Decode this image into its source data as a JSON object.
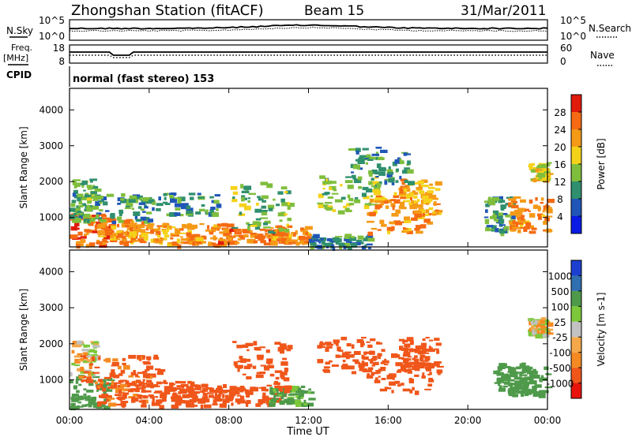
{
  "header": {
    "station": "Zhongshan Station (fitACF)",
    "beam": "Beam 15",
    "date": "31/Mar/2011"
  },
  "summary": {
    "nsky_label": "N.Sky",
    "nsky_ticks": [
      "10^5",
      "10^0"
    ],
    "nsearch_label": "N.Search",
    "nsearch_ticks": [
      "10^5",
      "10^0"
    ],
    "freq_label": "Freq.",
    "freq_unit": "[MHz]",
    "freq_ticks": [
      "18",
      "8"
    ],
    "nave_label": "Nave",
    "nave_ticks": [
      "60",
      "0"
    ],
    "cpid_label": "CPID",
    "cpid_text": "normal (fast stereo) 153"
  },
  "colors": {
    "power": [
      "#0a1be6",
      "#1f56b8",
      "#2f8f6e",
      "#7fbe3c",
      "#f5d21a",
      "#f59a16",
      "#f56a12",
      "#e01b0c"
    ],
    "velocity": [
      "#e8140c",
      "#f0561a",
      "#f58a22",
      "#f5a84a",
      "#c2c2c2",
      "#7cc83a",
      "#4e9a4a",
      "#2f6fb0",
      "#1c3fd0"
    ]
  },
  "chart_data": [
    {
      "type": "heatmap",
      "title": "",
      "xlabel": "Time UT",
      "ylabel": "Slant Range [km]",
      "x_ticks": [
        "00:00",
        "04:00",
        "08:00",
        "12:00",
        "16:00",
        "20:00",
        "00:00"
      ],
      "xlim_hours": [
        0,
        24
      ],
      "y_ticks": [
        1000,
        2000,
        3000,
        4000
      ],
      "ylim": [
        180,
        4600
      ],
      "colorbar": {
        "label": "Power [dB]",
        "ticks": [
          "4",
          "8",
          "12",
          "16",
          "20",
          "24",
          "28"
        ],
        "range": [
          0,
          30
        ]
      },
      "blobs": [
        {
          "t": 1.0,
          "r": 700,
          "dt": 1.0,
          "dr": 450,
          "v": 24
        },
        {
          "t": 2.5,
          "r": 650,
          "dt": 1.2,
          "dr": 350,
          "v": 22
        },
        {
          "t": 4.5,
          "r": 600,
          "dt": 1.6,
          "dr": 300,
          "v": 20
        },
        {
          "t": 6.5,
          "r": 550,
          "dt": 1.4,
          "dr": 300,
          "v": 22
        },
        {
          "t": 0.5,
          "r": 1500,
          "dt": 0.8,
          "dr": 600,
          "v": 12
        },
        {
          "t": 2.0,
          "r": 1300,
          "dt": 2.0,
          "dr": 400,
          "v": 10
        },
        {
          "t": 5.0,
          "r": 1400,
          "dt": 2.5,
          "dr": 300,
          "v": 9
        },
        {
          "t": 9.0,
          "r": 500,
          "dt": 1.6,
          "dr": 200,
          "v": 24
        },
        {
          "t": 11.0,
          "r": 550,
          "dt": 1.0,
          "dr": 250,
          "v": 22
        },
        {
          "t": 9.5,
          "r": 1300,
          "dt": 1.5,
          "dr": 700,
          "v": 12
        },
        {
          "t": 13.5,
          "r": 350,
          "dt": 1.5,
          "dr": 200,
          "v": 8
        },
        {
          "t": 14.0,
          "r": 1700,
          "dt": 1.6,
          "dr": 500,
          "v": 14
        },
        {
          "t": 16.5,
          "r": 1200,
          "dt": 1.6,
          "dr": 600,
          "v": 22
        },
        {
          "t": 17.5,
          "r": 1600,
          "dt": 1.0,
          "dr": 500,
          "v": 20
        },
        {
          "t": 15.5,
          "r": 2500,
          "dt": 1.5,
          "dr": 500,
          "v": 10
        },
        {
          "t": 21.5,
          "r": 1100,
          "dt": 0.7,
          "dr": 500,
          "v": 10
        },
        {
          "t": 23.0,
          "r": 1100,
          "dt": 1.0,
          "dr": 500,
          "v": 22
        },
        {
          "t": 23.5,
          "r": 2300,
          "dt": 0.5,
          "dr": 250,
          "v": 16
        }
      ]
    },
    {
      "type": "heatmap",
      "title": "",
      "xlabel": "Time UT",
      "ylabel": "Slant Range [km]",
      "x_ticks": [
        "00:00",
        "04:00",
        "08:00",
        "12:00",
        "16:00",
        "20:00",
        "00:00"
      ],
      "xlim_hours": [
        0,
        24
      ],
      "y_ticks": [
        1000,
        2000,
        3000,
        4000
      ],
      "ylim": [
        180,
        4600
      ],
      "colorbar": {
        "label": "Velocity [m s-1]",
        "ticks": [
          "1000",
          "500",
          "100",
          "25",
          "-25",
          "-100",
          "-500",
          "-1000"
        ],
        "range": [
          -1000,
          1000
        ]
      },
      "blobs": [
        {
          "t": 1.0,
          "r": 700,
          "dt": 1.0,
          "dr": 450,
          "v": 200
        },
        {
          "t": 2.5,
          "r": 650,
          "dt": 1.2,
          "dr": 350,
          "v": -150
        },
        {
          "t": 4.5,
          "r": 650,
          "dt": 1.6,
          "dr": 350,
          "v": -300
        },
        {
          "t": 6.5,
          "r": 600,
          "dt": 1.4,
          "dr": 300,
          "v": -300
        },
        {
          "t": 0.5,
          "r": 1600,
          "dt": 0.8,
          "dr": 500,
          "v": 0
        },
        {
          "t": 2.5,
          "r": 1300,
          "dt": 2.0,
          "dr": 400,
          "v": -150
        },
        {
          "t": 9.0,
          "r": 600,
          "dt": 1.6,
          "dr": 250,
          "v": -300
        },
        {
          "t": 11.0,
          "r": 600,
          "dt": 1.0,
          "dr": 250,
          "v": 150
        },
        {
          "t": 9.5,
          "r": 1400,
          "dt": 1.5,
          "dr": 700,
          "v": -300
        },
        {
          "t": 14.0,
          "r": 1700,
          "dt": 1.6,
          "dr": 500,
          "v": -300
        },
        {
          "t": 16.5,
          "r": 1300,
          "dt": 1.6,
          "dr": 600,
          "v": -300
        },
        {
          "t": 17.5,
          "r": 1700,
          "dt": 1.0,
          "dr": 500,
          "v": -300
        },
        {
          "t": 22.0,
          "r": 1100,
          "dt": 0.8,
          "dr": 400,
          "v": 200
        },
        {
          "t": 23.0,
          "r": 1000,
          "dt": 1.0,
          "dr": 400,
          "v": 200
        },
        {
          "t": 23.5,
          "r": 2500,
          "dt": 0.5,
          "dr": 250,
          "v": 0
        }
      ]
    }
  ]
}
